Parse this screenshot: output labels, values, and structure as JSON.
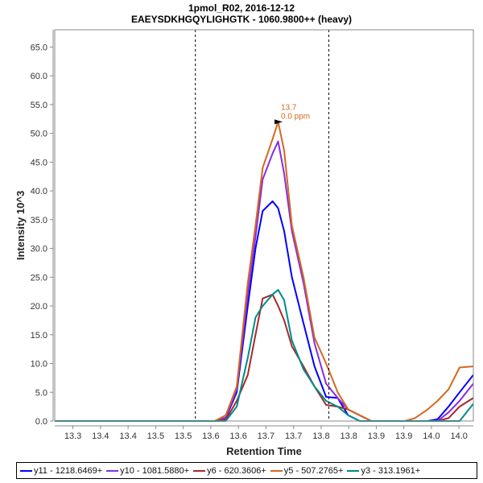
{
  "title": "1pmol_R02, 2016-12-12",
  "subtitle": "EAEYSDKHGQYLIGHGTK - 1060.9800++ (heavy)",
  "chart_data": {
    "type": "line",
    "xlabel": "Retention Time",
    "ylabel": "Intensity 10^3",
    "xlim": [
      13.267,
      14.026
    ],
    "ylim": [
      0,
      68.0
    ],
    "grid": false,
    "x_tick_values": [
      13.3,
      13.35,
      13.4,
      13.45,
      13.5,
      13.55,
      13.6,
      13.65,
      13.7,
      13.75,
      13.8,
      13.85,
      13.9,
      13.95,
      14.0
    ],
    "x_tick_labels": [
      "13.3",
      "13.4",
      "13.4",
      "13.5",
      "13.5",
      "13.6",
      "13.6",
      "13.7",
      "13.7",
      "13.8",
      "13.8",
      "13.9",
      "13.9",
      "14.0",
      "14.0"
    ],
    "y_tick_values": [
      0,
      5,
      10,
      15,
      20,
      25,
      30,
      35,
      40,
      45,
      50,
      55,
      60,
      65
    ],
    "y_tick_labels": [
      "0.0",
      "5.0",
      "10.0",
      "15.0",
      "20.0",
      "25.0",
      "30.0",
      "35.0",
      "40.0",
      "45.0",
      "50.0",
      "55.0",
      "60.0",
      "65.0"
    ],
    "boundaries": [
      13.522,
      13.764
    ],
    "annotation": {
      "x": 13.683,
      "y": 52.0,
      "line1": "13.7",
      "line2": "0.0 ppm",
      "color": "#d2691e"
    },
    "x": [
      13.267,
      13.55,
      13.557,
      13.577,
      13.597,
      13.617,
      13.631,
      13.644,
      13.662,
      13.672,
      13.683,
      13.697,
      13.718,
      13.738,
      13.759,
      13.78,
      13.799,
      13.82,
      13.841,
      13.861,
      13.882,
      13.902,
      13.92,
      13.943,
      13.961,
      13.981,
      14.001,
      14.026
    ],
    "series": [
      {
        "name": "y11 - 1218.6469+",
        "color": "#0000ff",
        "values": [
          0,
          0,
          0,
          0.5,
          5.0,
          20.0,
          30.0,
          36.5,
          38.2,
          37.0,
          33.0,
          25.0,
          17.0,
          9.5,
          4.2,
          4.0,
          1.0,
          0,
          0,
          0,
          0,
          0,
          0,
          0,
          0.3,
          2.5,
          5.0,
          8.0
        ]
      },
      {
        "name": "y10 - 1081.5880+",
        "color": "#8a2be2",
        "values": [
          0,
          0,
          0,
          0.6,
          5.5,
          22.0,
          32.0,
          42.0,
          46.5,
          48.6,
          43.0,
          33.0,
          24.0,
          13.5,
          6.5,
          4.0,
          2.0,
          1.0,
          0,
          0,
          0,
          0,
          0,
          0,
          0,
          1.5,
          3.5,
          6.5
        ]
      },
      {
        "name": "y6 - 620.3606+",
        "color": "#a52a2a",
        "values": [
          0,
          0,
          0,
          0.2,
          3.5,
          8.0,
          15.0,
          21.3,
          22.0,
          20.0,
          17.5,
          13.0,
          9.5,
          6.0,
          2.8,
          2.5,
          2.0,
          1.0,
          0,
          0,
          0,
          0,
          0,
          0,
          0,
          0.5,
          2.5,
          4.0
        ]
      },
      {
        "name": "y5 - 507.2765+",
        "color": "#d2691e",
        "values": [
          0,
          0,
          0,
          1.0,
          6.0,
          24.0,
          34.0,
          44.0,
          49.0,
          52.0,
          47.0,
          34.0,
          25.0,
          14.5,
          10.0,
          5.0,
          2.0,
          1.0,
          0,
          0,
          0,
          0,
          0.5,
          2.0,
          3.5,
          5.5,
          9.3,
          9.5
        ]
      },
      {
        "name": "y3 - 313.1961+",
        "color": "#008b8b",
        "values": [
          0,
          0,
          0,
          0,
          2.5,
          11.0,
          18.0,
          20.0,
          22.0,
          22.8,
          21.0,
          14.0,
          9.0,
          6.0,
          3.5,
          2.5,
          1.0,
          0,
          0,
          0,
          0,
          0,
          0,
          0,
          0,
          0,
          0,
          3.0
        ]
      }
    ]
  }
}
